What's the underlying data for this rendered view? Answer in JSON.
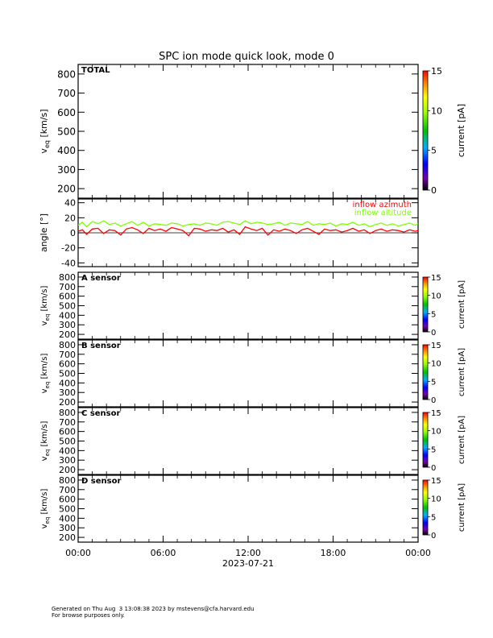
{
  "title": "SPC ion mode quick look, mode 0",
  "footer": {
    "line1": "Generated on Thu Aug  3 13:08:38 2023 by mstevens@cfa.harvard.edu",
    "line2": "For browse purposes only."
  },
  "chart_data": [
    {
      "id": "total",
      "type": "heatmap",
      "panel_label": "TOTAL",
      "ylabel": "v",
      "ylabel_sub": "eq",
      "ylabel_unit": "[km/s]",
      "ylim": [
        150,
        850
      ],
      "yticks": [
        200,
        300,
        400,
        500,
        600,
        700,
        800
      ],
      "colorbar": {
        "label": "current [pA]",
        "range": [
          0,
          15
        ],
        "ticks": [
          0,
          5,
          10,
          15
        ]
      },
      "values": []
    },
    {
      "id": "angle",
      "type": "line",
      "ylabel": "angle [°]",
      "ylim": [
        -45,
        45
      ],
      "yticks": [
        -40,
        -20,
        0,
        20,
        40
      ],
      "series": [
        {
          "name": "inflow azimuth",
          "color": "#ff0000",
          "x_hours": [
            0,
            0.3,
            0.6,
            1,
            1.4,
            1.8,
            2.2,
            2.6,
            3,
            3.4,
            3.8,
            4.2,
            4.6,
            5,
            5.4,
            5.8,
            6.2,
            6.6,
            7,
            7.4,
            7.8,
            8.2,
            8.6,
            9,
            9.4,
            9.8,
            10.2,
            10.6,
            11,
            11.4,
            11.8,
            12.2,
            12.6,
            13,
            13.4,
            13.8,
            14.2,
            14.6,
            15,
            15.4,
            15.8,
            16.2,
            16.6,
            17,
            17.4,
            17.8,
            18.2,
            18.6,
            19,
            19.4,
            19.8,
            20.2,
            20.6,
            21,
            21.4,
            21.8,
            22.2,
            22.6,
            23,
            23.4,
            23.8,
            24
          ],
          "values": [
            2,
            4,
            -2,
            5,
            6,
            -1,
            4,
            3,
            -3,
            5,
            7,
            4,
            -1,
            6,
            3,
            5,
            2,
            7,
            5,
            3,
            -4,
            6,
            5,
            2,
            4,
            3,
            6,
            1,
            4,
            -2,
            8,
            5,
            3,
            6,
            -3,
            4,
            2,
            5,
            3,
            -1,
            4,
            6,
            2,
            -2,
            5,
            3,
            4,
            1,
            3,
            6,
            2,
            4,
            -1,
            3,
            5,
            2,
            4,
            3,
            1,
            4,
            2,
            3
          ]
        },
        {
          "name": "inflow altitude",
          "color": "#7fff00",
          "x_hours": [
            0,
            0.3,
            0.6,
            1,
            1.4,
            1.8,
            2.2,
            2.6,
            3,
            3.4,
            3.8,
            4.2,
            4.6,
            5,
            5.4,
            5.8,
            6.2,
            6.6,
            7,
            7.4,
            7.8,
            8.2,
            8.6,
            9,
            9.4,
            9.8,
            10.2,
            10.6,
            11,
            11.4,
            11.8,
            12.2,
            12.6,
            13,
            13.4,
            13.8,
            14.2,
            14.6,
            15,
            15.4,
            15.8,
            16.2,
            16.6,
            17,
            17.4,
            17.8,
            18.2,
            18.6,
            19,
            19.4,
            19.8,
            20.2,
            20.6,
            21,
            21.4,
            21.8,
            22.2,
            22.6,
            23,
            23.4,
            23.8,
            24
          ],
          "values": [
            10,
            14,
            8,
            15,
            12,
            16,
            11,
            13,
            9,
            12,
            15,
            10,
            14,
            9,
            12,
            11,
            10,
            13,
            12,
            9,
            11,
            12,
            10,
            13,
            12,
            10,
            14,
            15,
            13,
            11,
            16,
            12,
            14,
            13,
            11,
            12,
            14,
            10,
            13,
            12,
            11,
            15,
            10,
            12,
            11,
            13,
            9,
            12,
            11,
            14,
            10,
            12,
            8,
            11,
            13,
            10,
            12,
            9,
            11,
            13,
            10,
            12
          ]
        }
      ]
    },
    {
      "id": "a",
      "type": "heatmap",
      "panel_label": "A sensor",
      "ylabel": "v",
      "ylabel_sub": "eq",
      "ylabel_unit": "[km/s]",
      "ylim": [
        150,
        850
      ],
      "yticks": [
        200,
        300,
        400,
        500,
        600,
        700,
        800
      ],
      "colorbar": {
        "label": "current [pA]",
        "range": [
          0,
          15
        ],
        "ticks": [
          0,
          5,
          10,
          15
        ]
      },
      "values": []
    },
    {
      "id": "b",
      "type": "heatmap",
      "panel_label": "B sensor",
      "ylabel": "v",
      "ylabel_sub": "eq",
      "ylabel_unit": "[km/s]",
      "ylim": [
        150,
        850
      ],
      "yticks": [
        200,
        300,
        400,
        500,
        600,
        700,
        800
      ],
      "colorbar": {
        "label": "current [pA]",
        "range": [
          0,
          15
        ],
        "ticks": [
          0,
          5,
          10,
          15
        ]
      },
      "values": []
    },
    {
      "id": "c",
      "type": "heatmap",
      "panel_label": "C sensor",
      "ylabel": "v",
      "ylabel_sub": "eq",
      "ylabel_unit": "[km/s]",
      "ylim": [
        150,
        850
      ],
      "yticks": [
        200,
        300,
        400,
        500,
        600,
        700,
        800
      ],
      "colorbar": {
        "label": "current [pA]",
        "range": [
          0,
          15
        ],
        "ticks": [
          0,
          5,
          10,
          15
        ]
      },
      "values": []
    },
    {
      "id": "d",
      "type": "heatmap",
      "panel_label": "D sensor",
      "ylabel": "v",
      "ylabel_sub": "eq",
      "ylabel_unit": "[km/s]",
      "ylim": [
        150,
        850
      ],
      "yticks": [
        200,
        300,
        400,
        500,
        600,
        700,
        800
      ],
      "colorbar": {
        "label": "current [pA]",
        "range": [
          0,
          15
        ],
        "ticks": [
          0,
          5,
          10,
          15
        ]
      },
      "values": []
    }
  ],
  "x_axis": {
    "range_hours": [
      0,
      24
    ],
    "tick_hours": [
      0,
      6,
      12,
      18,
      24
    ],
    "tick_labels": [
      "00:00",
      "06:00",
      "12:00",
      "18:00",
      "00:00"
    ],
    "date_label": "2023-07-21"
  }
}
